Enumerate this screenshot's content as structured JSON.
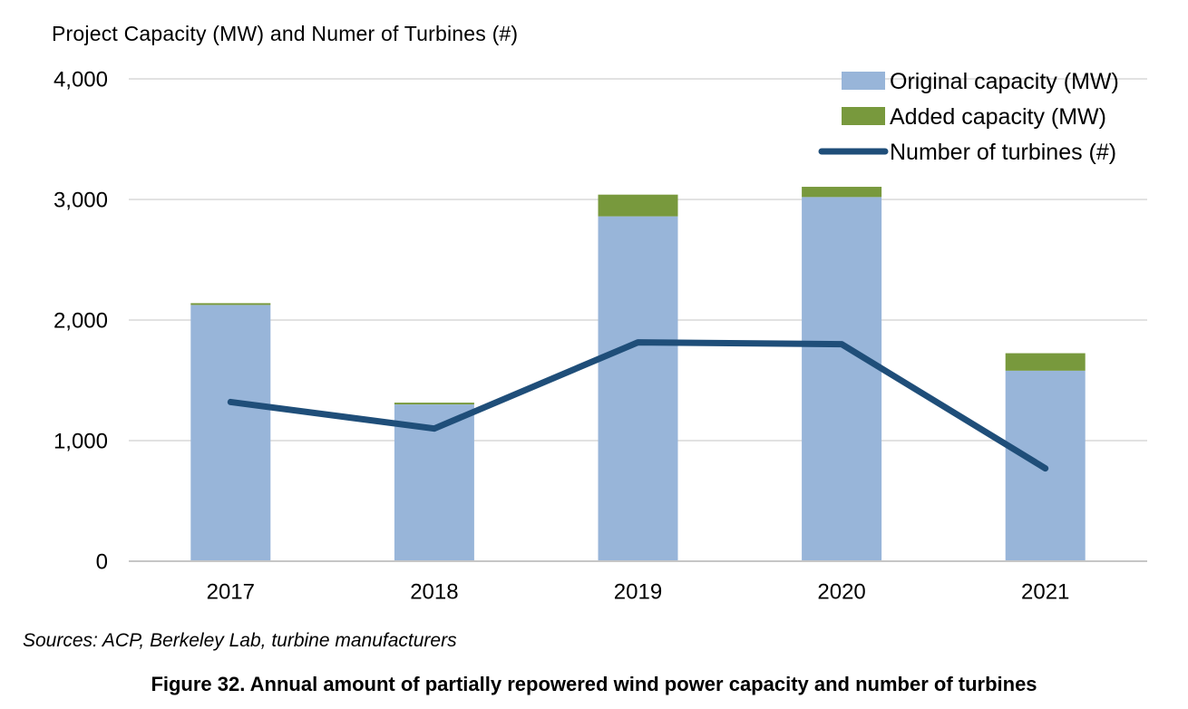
{
  "page": {
    "title": "Project Capacity (MW) and Numer of Turbines (#)",
    "sources_note": "Sources: ACP, Berkeley Lab, turbine manufacturers",
    "figure_caption": "Figure 32. Annual amount of partially repowered wind power capacity and number of turbines"
  },
  "chart_data": {
    "type": "combo",
    "title": "Project Capacity (MW) and Numer of Turbines (#)",
    "xlabel": "",
    "ylabel": "",
    "categories": [
      "2017",
      "2018",
      "2019",
      "2020",
      "2021"
    ],
    "series": [
      {
        "name": "Original capacity (MW)",
        "type": "bar",
        "stack": "capacity",
        "color": "#98b5d9",
        "values": [
          2125,
          1300,
          2860,
          3020,
          1580
        ]
      },
      {
        "name": "Added capacity (MW)",
        "type": "bar",
        "stack": "capacity",
        "color": "#78993d",
        "values": [
          15,
          15,
          180,
          85,
          145
        ]
      },
      {
        "name": "Number of turbines (#)",
        "type": "line",
        "color": "#1f4e79",
        "values": [
          1320,
          1100,
          1815,
          1800,
          770
        ]
      }
    ],
    "stacked_totals": [
      2140,
      1315,
      3040,
      3105,
      1725
    ],
    "ylim": [
      0,
      4000
    ],
    "yticks": [
      0,
      1000,
      2000,
      3000,
      4000
    ],
    "ytick_labels": [
      "0",
      "1,000",
      "2,000",
      "3,000",
      "4,000"
    ],
    "grid": true,
    "legend_position": "top-right",
    "colors": {
      "grid": "#d9d9d9",
      "axis": "#c6c6c6",
      "text": "#000000"
    }
  }
}
